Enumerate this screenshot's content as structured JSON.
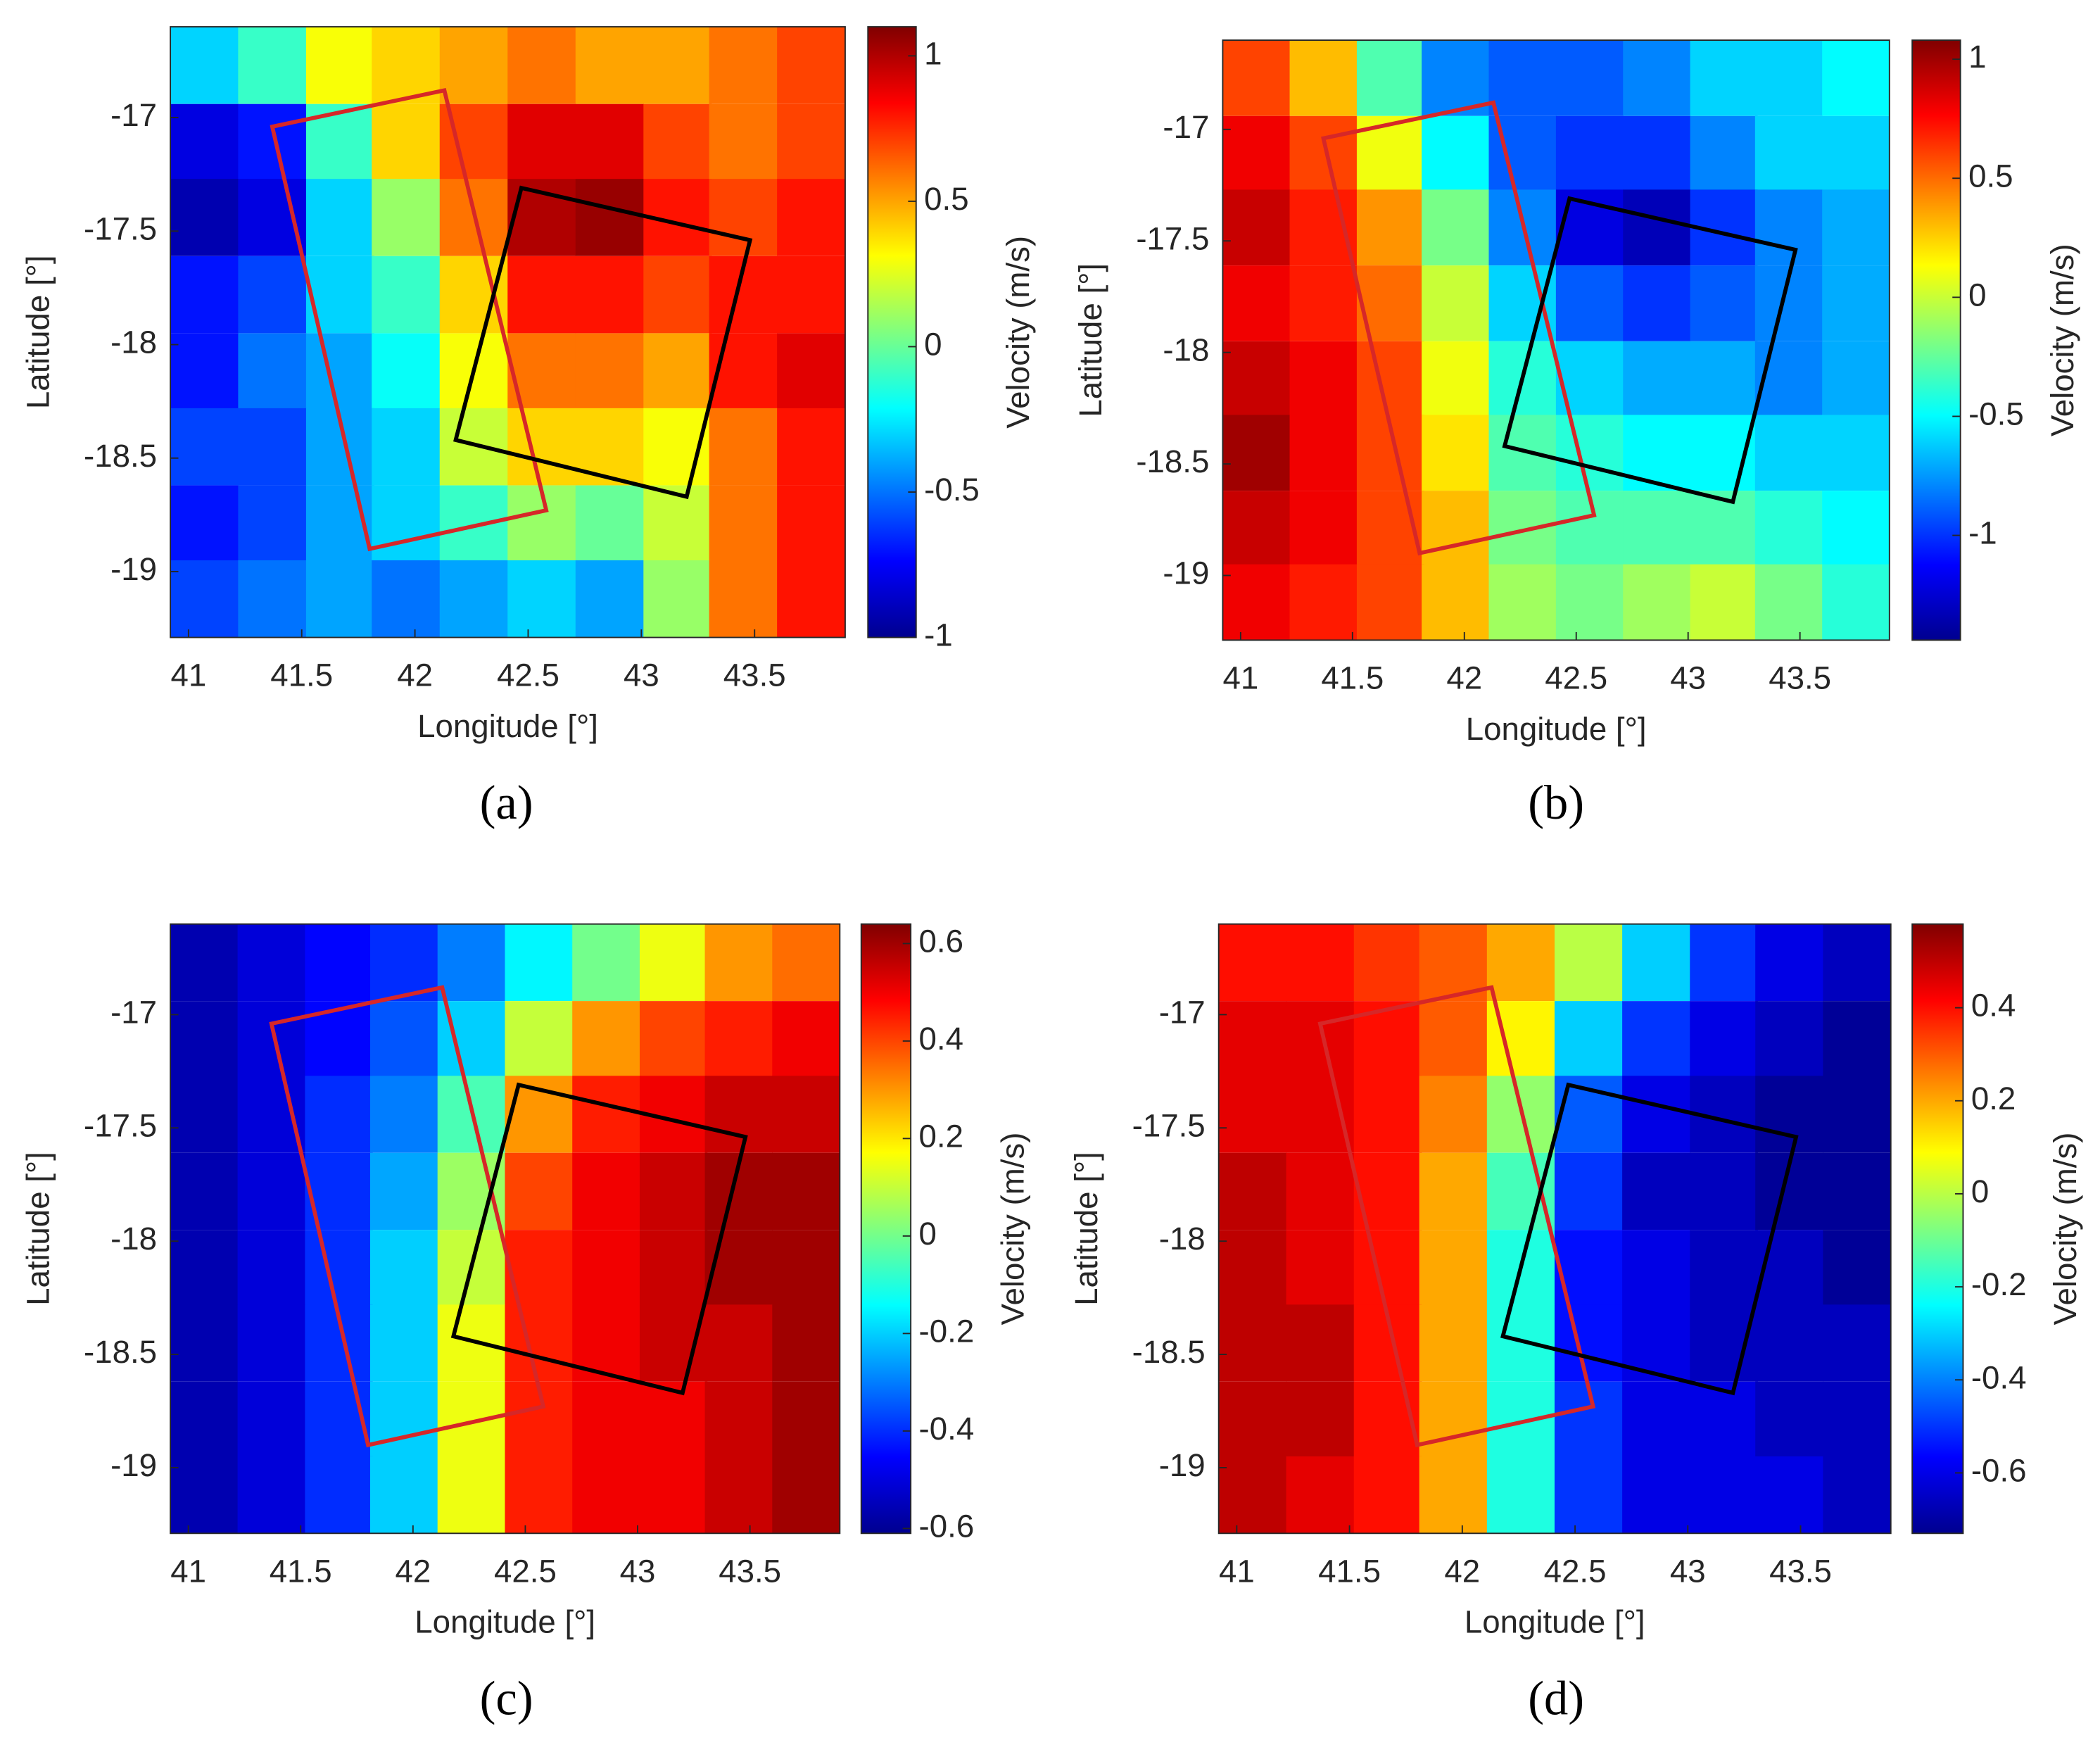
{
  "chart_data": [
    {
      "type": "heatmap",
      "label": "(a)",
      "xlabel": "Longitude [°]",
      "ylabel": "Latitude [°]",
      "colorbar_label": "Velocity (m/s)",
      "xlim": [
        40.92,
        43.9
      ],
      "ylim": [
        -19.29,
        -16.6
      ],
      "xticks": [
        41,
        41.5,
        42,
        42.5,
        43,
        43.5
      ],
      "yticks": [
        -17,
        -17.5,
        -18,
        -18.5,
        -19
      ],
      "clim": [
        -1,
        1.1
      ],
      "cticks": [
        -1,
        -0.5,
        0,
        0.5,
        1
      ],
      "x": [
        41.07,
        41.37,
        41.67,
        41.96,
        42.26,
        42.56,
        42.86,
        43.16,
        43.45,
        43.75
      ],
      "y": [
        -16.77,
        -17.11,
        -17.44,
        -17.78,
        -18.12,
        -18.45,
        -18.79,
        -19.12
      ],
      "z": [
        [
          -0.3,
          -0.1,
          0.3,
          0.4,
          0.5,
          0.6,
          0.5,
          0.5,
          0.6,
          0.7
        ],
        [
          -0.8,
          -0.7,
          -0.1,
          0.4,
          0.7,
          0.9,
          0.9,
          0.7,
          0.6,
          0.7
        ],
        [
          -0.9,
          -0.8,
          -0.3,
          0.1,
          0.6,
          1.0,
          1.05,
          0.8,
          0.7,
          0.8
        ],
        [
          -0.7,
          -0.6,
          -0.3,
          -0.1,
          0.4,
          0.8,
          0.8,
          0.7,
          0.8,
          0.8
        ],
        [
          -0.7,
          -0.5,
          -0.4,
          -0.2,
          0.3,
          0.6,
          0.6,
          0.5,
          0.8,
          0.9
        ],
        [
          -0.6,
          -0.6,
          -0.4,
          -0.3,
          0.2,
          0.4,
          0.4,
          0.3,
          0.6,
          0.8
        ],
        [
          -0.7,
          -0.6,
          -0.4,
          -0.3,
          -0.1,
          0.1,
          0.0,
          0.2,
          0.6,
          0.8
        ],
        [
          -0.6,
          -0.5,
          -0.4,
          -0.5,
          -0.4,
          -0.3,
          -0.4,
          0.1,
          0.6,
          0.8
        ]
      ],
      "outlines": [
        {
          "color": "#d62728",
          "points": [
            [
              41.37,
              -17.04
            ],
            [
              42.13,
              -16.88
            ],
            [
              42.58,
              -18.73
            ],
            [
              41.8,
              -18.9
            ]
          ]
        },
        {
          "color": "#000000",
          "points": [
            [
              42.47,
              -17.31
            ],
            [
              43.48,
              -17.54
            ],
            [
              43.2,
              -18.67
            ],
            [
              42.18,
              -18.42
            ]
          ]
        }
      ]
    },
    {
      "type": "heatmap",
      "label": "(b)",
      "xlabel": "Longitude [°]",
      "ylabel": "Latitude [°]",
      "colorbar_label": "Velocity (m/s)",
      "xlim": [
        40.92,
        43.9
      ],
      "ylim": [
        -19.29,
        -16.6
      ],
      "xticks": [
        41,
        41.5,
        42,
        42.5,
        43,
        43.5
      ],
      "yticks": [
        -17,
        -17.5,
        -18,
        -18.5,
        -19
      ],
      "clim": [
        -1.44,
        1.08
      ],
      "cticks": [
        -1,
        -0.5,
        0,
        0.5,
        1
      ],
      "x": [
        41.07,
        41.37,
        41.67,
        41.96,
        42.26,
        42.56,
        42.86,
        43.16,
        43.45,
        43.75
      ],
      "y": [
        -16.77,
        -17.11,
        -17.44,
        -17.78,
        -18.12,
        -18.45,
        -18.79,
        -19.12
      ],
      "z": [
        [
          0.6,
          0.3,
          -0.3,
          -0.8,
          -0.9,
          -0.9,
          -0.8,
          -0.6,
          -0.6,
          -0.5
        ],
        [
          0.8,
          0.6,
          0.1,
          -0.5,
          -0.9,
          -1.0,
          -1.0,
          -0.8,
          -0.6,
          -0.6
        ],
        [
          0.9,
          0.7,
          0.4,
          -0.2,
          -0.8,
          -1.2,
          -1.3,
          -1.0,
          -0.8,
          -0.7
        ],
        [
          0.8,
          0.7,
          0.5,
          0.0,
          -0.6,
          -0.9,
          -1.0,
          -0.9,
          -0.8,
          -0.7
        ],
        [
          0.9,
          0.8,
          0.6,
          0.1,
          -0.4,
          -0.6,
          -0.7,
          -0.7,
          -0.8,
          -0.7
        ],
        [
          1.0,
          0.8,
          0.6,
          0.2,
          -0.3,
          -0.4,
          -0.5,
          -0.5,
          -0.6,
          -0.6
        ],
        [
          0.9,
          0.8,
          0.6,
          0.3,
          -0.2,
          -0.3,
          -0.3,
          -0.3,
          -0.4,
          -0.5
        ],
        [
          0.8,
          0.7,
          0.6,
          0.3,
          -0.1,
          -0.2,
          -0.1,
          0.0,
          -0.2,
          -0.4
        ]
      ],
      "outlines": [
        {
          "color": "#d62728",
          "points": [
            [
              41.37,
              -17.04
            ],
            [
              42.13,
              -16.88
            ],
            [
              42.58,
              -18.73
            ],
            [
              41.8,
              -18.9
            ]
          ]
        },
        {
          "color": "#000000",
          "points": [
            [
              42.47,
              -17.31
            ],
            [
              43.48,
              -17.54
            ],
            [
              43.2,
              -18.67
            ],
            [
              42.18,
              -18.42
            ]
          ]
        }
      ]
    },
    {
      "type": "heatmap",
      "label": "(c)",
      "xlabel": "Longitude [°]",
      "ylabel": "Latitude [°]",
      "colorbar_label": "Velocity (m/s)",
      "xlim": [
        40.92,
        43.9
      ],
      "ylim": [
        -19.29,
        -16.6
      ],
      "xticks": [
        41,
        41.5,
        42,
        42.5,
        43,
        43.5
      ],
      "yticks": [
        -17,
        -17.5,
        -18,
        -18.5,
        -19
      ],
      "clim": [
        -0.61,
        0.64
      ],
      "cticks": [
        -0.6,
        -0.4,
        -0.2,
        0,
        0.2,
        0.4,
        0.6
      ],
      "x": [
        41.07,
        41.37,
        41.67,
        41.96,
        42.26,
        42.56,
        42.86,
        43.16,
        43.45,
        43.75
      ],
      "y": [
        -16.77,
        -17.11,
        -17.44,
        -17.78,
        -18.12,
        -18.45,
        -18.79,
        -19.12
      ],
      "z": [
        [
          -0.55,
          -0.5,
          -0.45,
          -0.4,
          -0.3,
          -0.15,
          0.0,
          0.15,
          0.3,
          0.35
        ],
        [
          -0.55,
          -0.5,
          -0.45,
          -0.35,
          -0.2,
          0.1,
          0.3,
          0.4,
          0.45,
          0.5
        ],
        [
          -0.55,
          -0.5,
          -0.4,
          -0.3,
          -0.05,
          0.3,
          0.45,
          0.5,
          0.55,
          0.55
        ],
        [
          -0.55,
          -0.5,
          -0.4,
          -0.25,
          0.05,
          0.4,
          0.5,
          0.55,
          0.6,
          0.6
        ],
        [
          -0.55,
          -0.5,
          -0.4,
          -0.2,
          0.1,
          0.45,
          0.5,
          0.55,
          0.6,
          0.6
        ],
        [
          -0.55,
          -0.5,
          -0.4,
          -0.2,
          0.15,
          0.45,
          0.5,
          0.55,
          0.55,
          0.6
        ],
        [
          -0.55,
          -0.5,
          -0.4,
          -0.2,
          0.15,
          0.45,
          0.5,
          0.5,
          0.55,
          0.6
        ],
        [
          -0.55,
          -0.5,
          -0.4,
          -0.2,
          0.15,
          0.45,
          0.5,
          0.5,
          0.55,
          0.6
        ]
      ],
      "outlines": [
        {
          "color": "#d62728",
          "points": [
            [
              41.37,
              -17.04
            ],
            [
              42.13,
              -16.88
            ],
            [
              42.58,
              -18.73
            ],
            [
              41.8,
              -18.9
            ]
          ]
        },
        {
          "color": "#000000",
          "points": [
            [
              42.47,
              -17.31
            ],
            [
              43.48,
              -17.54
            ],
            [
              43.2,
              -18.67
            ],
            [
              42.18,
              -18.42
            ]
          ]
        }
      ]
    },
    {
      "type": "heatmap",
      "label": "(d)",
      "xlabel": "Longitude [°]",
      "ylabel": "Latitude [°]",
      "colorbar_label": "Velocity (m/s)",
      "xlim": [
        40.92,
        43.9
      ],
      "ylim": [
        -19.29,
        -16.6
      ],
      "xticks": [
        41,
        41.5,
        42,
        42.5,
        43,
        43.5
      ],
      "yticks": [
        -17,
        -17.5,
        -18,
        -18.5,
        -19
      ],
      "clim": [
        -0.73,
        0.58
      ],
      "cticks": [
        -0.6,
        -0.4,
        -0.2,
        0,
        0.2,
        0.4
      ],
      "x": [
        41.07,
        41.37,
        41.67,
        41.96,
        42.26,
        42.56,
        42.86,
        43.16,
        43.45,
        43.75
      ],
      "y": [
        -16.77,
        -17.11,
        -17.44,
        -17.78,
        -18.12,
        -18.45,
        -18.79,
        -19.12
      ],
      "z": [
        [
          0.4,
          0.4,
          0.35,
          0.3,
          0.2,
          0.0,
          -0.3,
          -0.5,
          -0.6,
          -0.65
        ],
        [
          0.45,
          0.45,
          0.4,
          0.3,
          0.1,
          -0.3,
          -0.5,
          -0.6,
          -0.65,
          -0.7
        ],
        [
          0.45,
          0.45,
          0.4,
          0.25,
          -0.05,
          -0.45,
          -0.6,
          -0.65,
          -0.7,
          -0.7
        ],
        [
          0.5,
          0.45,
          0.4,
          0.2,
          -0.15,
          -0.5,
          -0.65,
          -0.65,
          -0.7,
          -0.7
        ],
        [
          0.5,
          0.45,
          0.4,
          0.2,
          -0.2,
          -0.55,
          -0.6,
          -0.65,
          -0.65,
          -0.7
        ],
        [
          0.5,
          0.5,
          0.4,
          0.2,
          -0.2,
          -0.55,
          -0.6,
          -0.65,
          -0.65,
          -0.65
        ],
        [
          0.5,
          0.5,
          0.4,
          0.2,
          -0.2,
          -0.5,
          -0.6,
          -0.6,
          -0.65,
          -0.65
        ],
        [
          0.5,
          0.45,
          0.4,
          0.2,
          -0.2,
          -0.5,
          -0.6,
          -0.6,
          -0.6,
          -0.65
        ]
      ],
      "outlines": [
        {
          "color": "#d62728",
          "points": [
            [
              41.37,
              -17.04
            ],
            [
              42.13,
              -16.88
            ],
            [
              42.58,
              -18.73
            ],
            [
              41.8,
              -18.9
            ]
          ]
        },
        {
          "color": "#000000",
          "points": [
            [
              42.47,
              -17.31
            ],
            [
              43.48,
              -17.54
            ],
            [
              43.2,
              -18.67
            ],
            [
              42.18,
              -18.42
            ]
          ]
        }
      ]
    }
  ]
}
